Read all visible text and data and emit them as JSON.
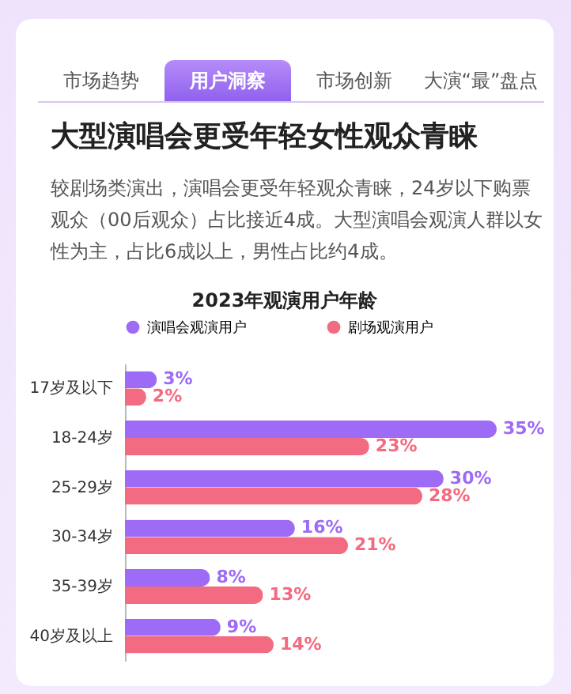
{
  "chart_data": {
    "type": "bar",
    "orientation": "horizontal",
    "title": "大型演唱会更受年轻女性观众青睐",
    "subtitle": "较剧场类演出，演唱会更受年轻观众青睐，24岁以下购票观众（00后观众）占比接近4成。大型演唱会观演人群以女性为主，占比6成以上，男性占比约4成。",
    "annotations": [
      "市场趋势",
      "用户洞察",
      "市场创新",
      "大演“最”盘点",
      "2023年观演用户年龄"
    ],
    "categories": [
      "17岁及以下",
      "18-24岁",
      "25-29岁",
      "30-34岁",
      "35-39岁",
      "40岁及以上"
    ],
    "series": [
      {
        "name": "演唱会观演用户",
        "color": "#9d6bf6",
        "values": [
          3,
          35,
          30,
          16,
          8,
          9
        ],
        "value_labels": [
          "3%",
          "35%",
          "30%",
          "16%",
          "8%",
          "9%"
        ]
      },
      {
        "name": "剧场观演用户",
        "color": "#f26b80",
        "values": [
          2,
          23,
          28,
          21,
          13,
          14
        ],
        "value_labels": [
          "2%",
          "23%",
          "28%",
          "21%",
          "13%",
          "14%"
        ]
      }
    ],
    "legend": "top"
  }
}
